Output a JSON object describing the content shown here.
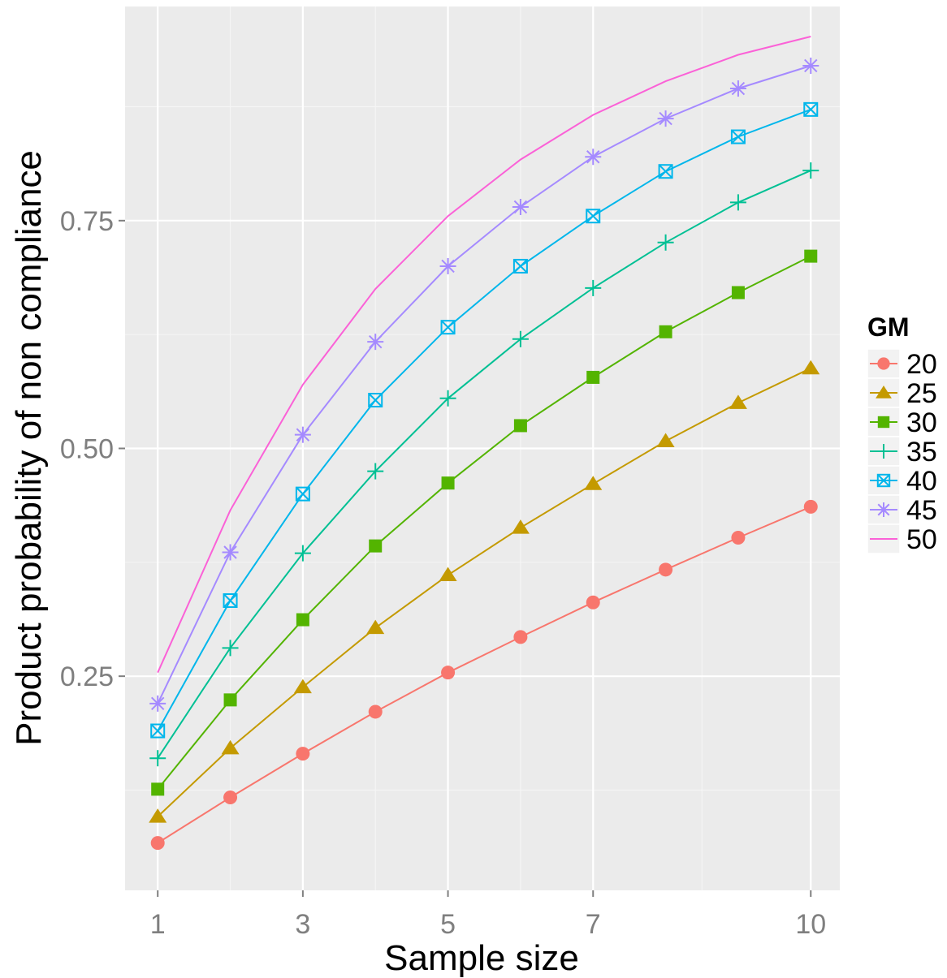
{
  "chart_data": {
    "type": "line",
    "xlabel": "Sample size",
    "ylabel": "Product probability of non compliance",
    "x": [
      1,
      2,
      3,
      4,
      5,
      6,
      7,
      8,
      9,
      10
    ],
    "x_ticks": [
      1,
      3,
      5,
      7,
      10
    ],
    "x_tick_labels": [
      "1",
      "3",
      "5",
      "7",
      "10"
    ],
    "y_ticks": [
      0.25,
      0.5,
      0.75
    ],
    "y_tick_labels": [
      "0.25",
      "0.50",
      "0.75"
    ],
    "xlim": [
      0.55,
      10.4
    ],
    "ylim": [
      0.015,
      0.985
    ],
    "grid": true,
    "legend": {
      "title": "GM",
      "placement": "right"
    },
    "series": [
      {
        "name": "20",
        "color": "#f8766d",
        "marker": "circle",
        "values": [
          0.067,
          0.117,
          0.165,
          0.211,
          0.254,
          0.293,
          0.331,
          0.367,
          0.402,
          0.436
        ]
      },
      {
        "name": "25",
        "color": "#c49a00",
        "marker": "triangle",
        "values": [
          0.096,
          0.171,
          0.238,
          0.303,
          0.361,
          0.413,
          0.461,
          0.508,
          0.55,
          0.588
        ]
      },
      {
        "name": "30",
        "color": "#53b400",
        "marker": "square",
        "values": [
          0.126,
          0.224,
          0.312,
          0.393,
          0.462,
          0.525,
          0.578,
          0.628,
          0.671,
          0.711
        ]
      },
      {
        "name": "35",
        "color": "#00c094",
        "marker": "plus",
        "values": [
          0.16,
          0.281,
          0.385,
          0.475,
          0.555,
          0.62,
          0.676,
          0.726,
          0.77,
          0.805
        ]
      },
      {
        "name": "40",
        "color": "#00b6eb",
        "marker": "boxcross",
        "values": [
          0.19,
          0.333,
          0.45,
          0.553,
          0.633,
          0.7,
          0.755,
          0.804,
          0.842,
          0.872
        ]
      },
      {
        "name": "45",
        "color": "#a58aff",
        "marker": "asterisk",
        "values": [
          0.22,
          0.386,
          0.515,
          0.617,
          0.7,
          0.765,
          0.82,
          0.862,
          0.895,
          0.92
        ]
      },
      {
        "name": "50",
        "color": "#fb61d7",
        "marker": "none",
        "values": [
          0.254,
          0.432,
          0.57,
          0.675,
          0.755,
          0.817,
          0.866,
          0.903,
          0.932,
          0.952
        ]
      }
    ]
  }
}
